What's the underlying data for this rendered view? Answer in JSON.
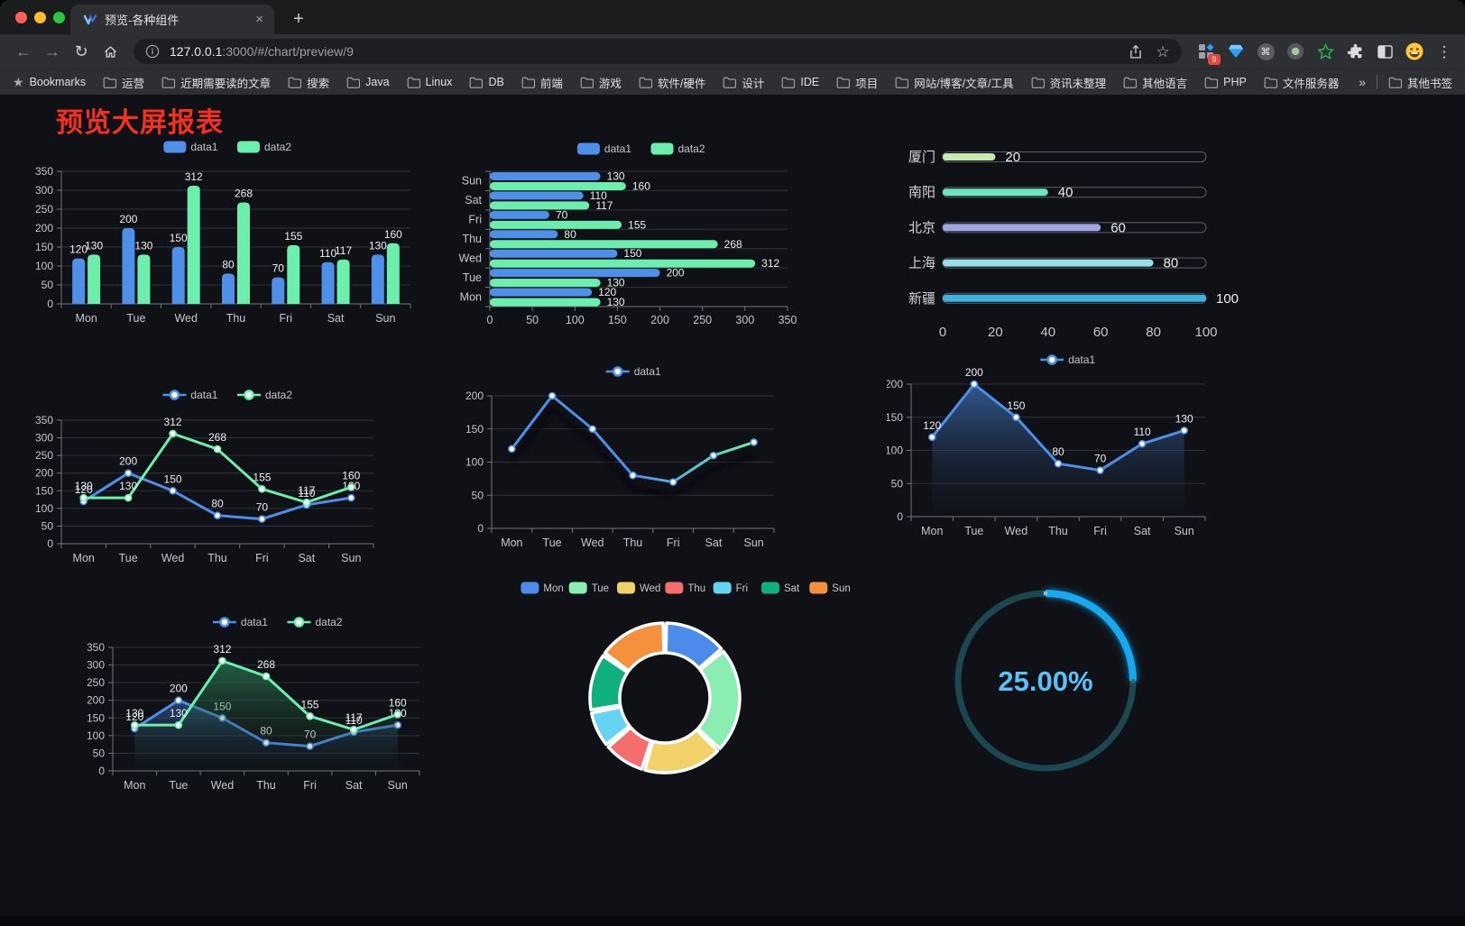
{
  "browser": {
    "tab_title": "预览-各种组件",
    "tab_close": "×",
    "new_tab": "+",
    "nav": {
      "back": "←",
      "forward": "→",
      "reload": "↻"
    },
    "url_host": "127.0.0.1",
    "url_rest": ":3000/#/chart/preview/9",
    "star": "☆",
    "cmd": "⌘",
    "kebab": "⋮",
    "extension_badge": "9",
    "bookmarks_star": "★",
    "bookmarks_label": "Bookmarks",
    "bookmark_folders": [
      "运营",
      "近期需要读的文章",
      "搜索",
      "Java",
      "Linux",
      "DB",
      "前端",
      "游戏",
      "软件/硬件",
      "设计",
      "IDE",
      "项目",
      "网站/博客/文章/工具",
      "资讯未整理",
      "其他语言",
      "PHP",
      "文件服务器"
    ],
    "bookmarks_overflow": "»",
    "other_bookmarks": "其他书签"
  },
  "page": {
    "title": "预览大屏报表",
    "title_color": "#F2321E"
  },
  "chart_data": [
    {
      "id": "grouped-bar",
      "type": "bar",
      "categories": [
        "Mon",
        "Tue",
        "Wed",
        "Thu",
        "Fri",
        "Sat",
        "Sun"
      ],
      "series": [
        {
          "name": "data1",
          "color": "#4E8FE9",
          "values": [
            120,
            200,
            150,
            80,
            70,
            110,
            130
          ]
        },
        {
          "name": "data2",
          "color": "#6CEFAD",
          "values": [
            130,
            130,
            312,
            268,
            155,
            117,
            160
          ]
        }
      ],
      "ylim": [
        0,
        350
      ],
      "ystep": 50,
      "labels": true,
      "legend_position": "top"
    },
    {
      "id": "horizontal-bar",
      "type": "hbar",
      "categories": [
        "Mon",
        "Tue",
        "Wed",
        "Thu",
        "Fri",
        "Sat",
        "Sun"
      ],
      "series": [
        {
          "name": "data1",
          "color": "#4E8FE9",
          "values": [
            120,
            200,
            150,
            80,
            70,
            110,
            130
          ]
        },
        {
          "name": "data2",
          "color": "#6CEFAD",
          "values": [
            130,
            130,
            312,
            268,
            155,
            117,
            160
          ]
        }
      ],
      "xlim": [
        0,
        350
      ],
      "xstep": 50,
      "labels": true,
      "legend_position": "top"
    },
    {
      "id": "city-progress",
      "type": "progress",
      "items": [
        {
          "label": "厦门",
          "value": 20,
          "color": "#C4EBAD"
        },
        {
          "label": "南阳",
          "value": 40,
          "color": "#6BE6C1"
        },
        {
          "label": "北京",
          "value": 60,
          "color": "#A0A7E6"
        },
        {
          "label": "上海",
          "value": 80,
          "color": "#96DEE8"
        },
        {
          "label": "新疆",
          "value": 100,
          "color": "#3FB1E3"
        }
      ],
      "xlim": [
        0,
        100
      ],
      "xstep": 20
    },
    {
      "id": "line-dual",
      "type": "line",
      "categories": [
        "Mon",
        "Tue",
        "Wed",
        "Thu",
        "Fri",
        "Sat",
        "Sun"
      ],
      "series": [
        {
          "name": "data1",
          "color": "#4E8FE9",
          "values": [
            120,
            200,
            150,
            80,
            70,
            110,
            130
          ]
        },
        {
          "name": "data2",
          "color": "#6CEFAD",
          "values": [
            130,
            130,
            312,
            268,
            155,
            117,
            160
          ]
        }
      ],
      "ylim": [
        0,
        350
      ],
      "ystep": 50,
      "labels": true,
      "legend_position": "top"
    },
    {
      "id": "line-gradient",
      "type": "line",
      "categories": [
        "Mon",
        "Tue",
        "Wed",
        "Thu",
        "Fri",
        "Sat",
        "Sun"
      ],
      "series": [
        {
          "name": "data1",
          "color": "#4E8FE9",
          "gradient": [
            "#4E8FE9",
            "#4E8FE9",
            "#6CEFAD"
          ],
          "values": [
            120,
            200,
            150,
            80,
            70,
            110,
            130
          ]
        }
      ],
      "ylim": [
        0,
        200
      ],
      "ystep": 50,
      "labels": false,
      "shadow": true,
      "legend_position": "top"
    },
    {
      "id": "area-single",
      "type": "line",
      "categories": [
        "Mon",
        "Tue",
        "Wed",
        "Thu",
        "Fri",
        "Sat",
        "Sun"
      ],
      "series": [
        {
          "name": "data1",
          "color": "#4E8FE9",
          "area": [
            "rgba(54,98,158,0.90)",
            "rgba(25,35,55,0.03)"
          ],
          "values": [
            120,
            200,
            150,
            80,
            70,
            110,
            130
          ]
        }
      ],
      "ylim": [
        0,
        200
      ],
      "ystep": 50,
      "labels": true,
      "legend_position": "top"
    },
    {
      "id": "area-dual",
      "type": "line",
      "categories": [
        "Mon",
        "Tue",
        "Wed",
        "Thu",
        "Fri",
        "Sat",
        "Sun"
      ],
      "series": [
        {
          "name": "data1",
          "color": "#4E8FE9",
          "area": [
            "rgba(56,110,190,0.55)",
            "rgba(25,35,55,0.03)"
          ],
          "values": [
            120,
            200,
            150,
            80,
            70,
            110,
            130
          ]
        },
        {
          "name": "data2",
          "color": "#6CEFAD",
          "area": [
            "rgba(47,140,96,0.65)",
            "rgba(20,40,30,0.03)"
          ],
          "values": [
            130,
            130,
            312,
            268,
            155,
            117,
            160
          ]
        }
      ],
      "ylim": [
        0,
        350
      ],
      "ystep": 50,
      "labels": true,
      "legend_position": "top"
    },
    {
      "id": "week-donut",
      "type": "pie",
      "items": [
        {
          "name": "Mon",
          "value": 120,
          "color": "#4B8BEA"
        },
        {
          "name": "Tue",
          "value": 200,
          "color": "#8AEDB2"
        },
        {
          "name": "Wed",
          "value": 150,
          "color": "#F2D169"
        },
        {
          "name": "Thu",
          "value": 80,
          "color": "#F56E6E"
        },
        {
          "name": "Fri",
          "value": 70,
          "color": "#64D4F2"
        },
        {
          "name": "Sat",
          "value": 110,
          "color": "#0FAF80"
        },
        {
          "name": "Sun",
          "value": 130,
          "color": "#F5913D"
        }
      ],
      "legend_position": "top"
    },
    {
      "id": "percent-gauge",
      "type": "gauge",
      "value": 25,
      "display": "25.00%",
      "color": "#18A9EF",
      "track_color": "#1C4650",
      "text_color": "#58C1F8"
    }
  ]
}
